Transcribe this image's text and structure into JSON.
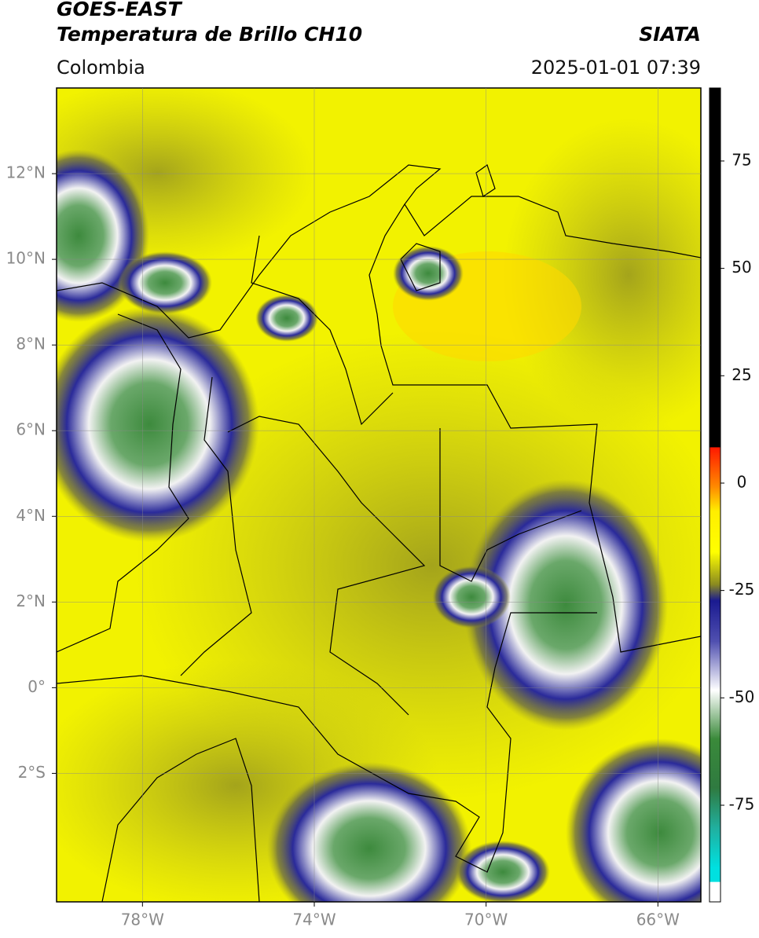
{
  "header": {
    "satellite": "GOES-EAST",
    "product": "Temperatura de Brillo CH10",
    "agency": "SIATA",
    "region": "Colombia",
    "datetime": "2025-01-01 07:39"
  },
  "map": {
    "lon_lim": [
      -80,
      -65
    ],
    "lat_lim": [
      -5,
      14
    ],
    "grid": true,
    "lon_ticks": [
      {
        "value": -78,
        "label": "78°W"
      },
      {
        "value": -74,
        "label": "74°W"
      },
      {
        "value": -70,
        "label": "70°W"
      },
      {
        "value": -66,
        "label": "66°W"
      }
    ],
    "lat_ticks": [
      {
        "value": 12,
        "label": "12°N"
      },
      {
        "value": 10,
        "label": "10°N"
      },
      {
        "value": 8,
        "label": "8°N"
      },
      {
        "value": 6,
        "label": "6°N"
      },
      {
        "value": 4,
        "label": "4°N"
      },
      {
        "value": 2,
        "label": "2°N"
      },
      {
        "value": 0,
        "label": "0°"
      },
      {
        "value": -2,
        "label": "2°S"
      }
    ]
  },
  "colorbar": {
    "lim": [
      -97.5,
      92
    ],
    "ticks": [
      75,
      50,
      25,
      0,
      -25,
      -50,
      -75
    ]
  }
}
